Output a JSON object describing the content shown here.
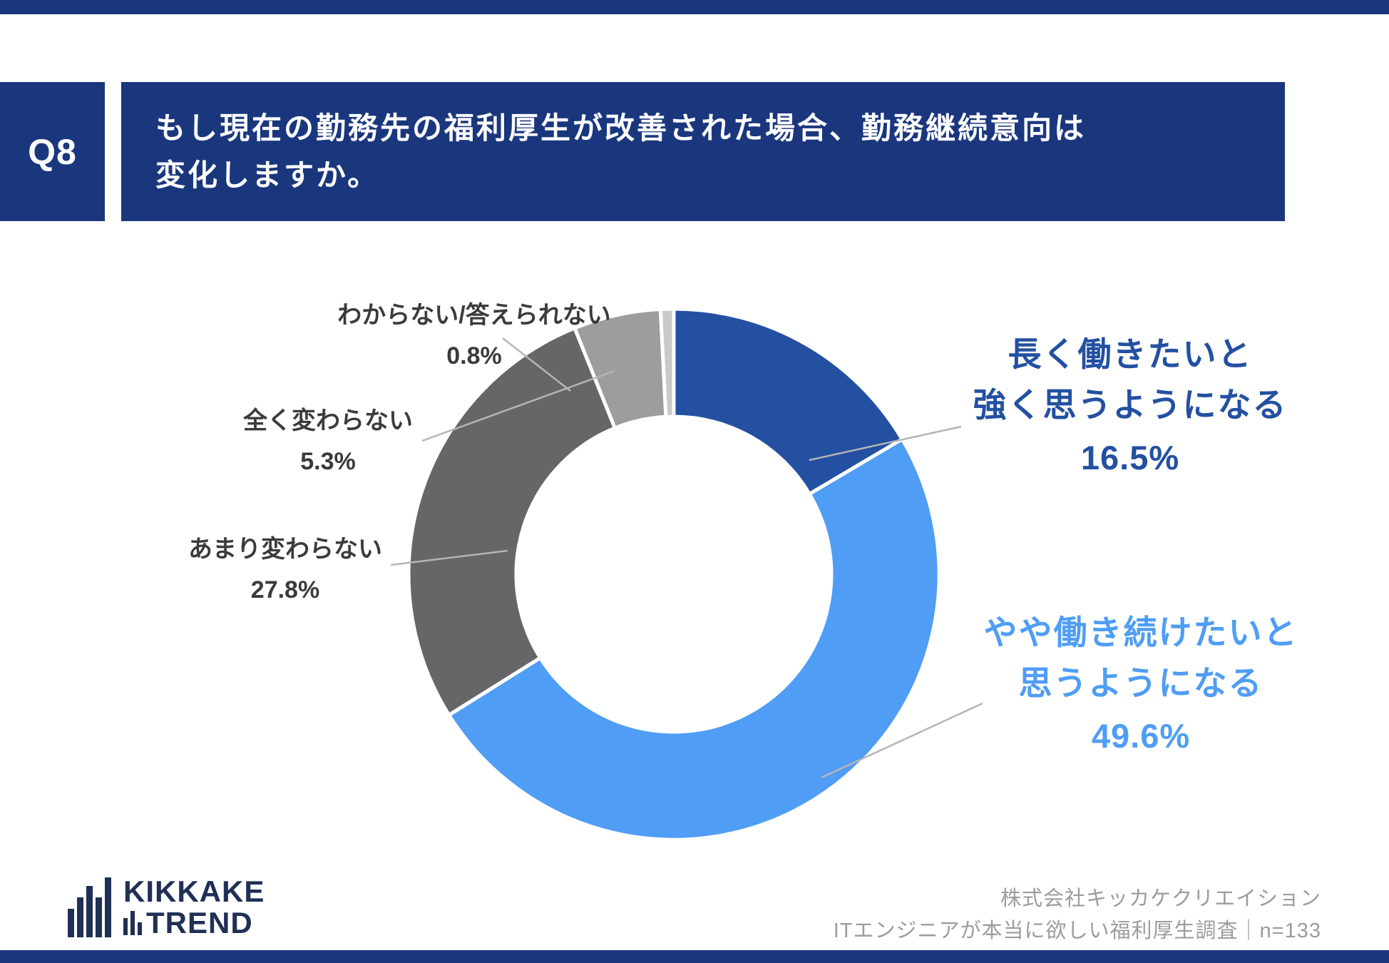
{
  "header": {
    "badge": "Q8",
    "question": "もし現在の勤務先の福利厚生が改善された場合、勤務継続意向は\n変化しますか。"
  },
  "chart_data": {
    "type": "pie",
    "subtype": "donut",
    "title": "もし現在の勤務先の福利厚生が改善された場合、勤務継続意向は変化しますか。",
    "unit": "%",
    "start_angle_deg": 0,
    "direction": "clockwise",
    "legend_position": "callout-labels",
    "segments": [
      {
        "label": "長く働きたいと強く思うようになる",
        "value": 16.5,
        "color": "#2350a1"
      },
      {
        "label": "やや働き続けたいと思うようになる",
        "value": 49.6,
        "color": "#4f9df5"
      },
      {
        "label": "あまり変わらない",
        "value": 27.8,
        "color": "#666666"
      },
      {
        "label": "全く変わらない",
        "value": 5.3,
        "color": "#9d9d9d"
      },
      {
        "label": "わからない/答えられない",
        "value": 0.8,
        "color": "#c9c9c9"
      }
    ]
  },
  "callouts": {
    "strong": {
      "line1": "長く働きたいと",
      "line2": "強く思うようになる",
      "pct": "16.5%",
      "color": "#2350a1"
    },
    "somewhat": {
      "line1": "やや働き続けたいと",
      "line2": "思うようになる",
      "pct": "49.6%",
      "color": "#4f9df5"
    },
    "not_much": {
      "label": "あまり変わらない",
      "pct": "27.8%"
    },
    "no_change": {
      "label": "全く変わらない",
      "pct": "5.3%"
    },
    "unknown": {
      "label": "わからない/答えられない",
      "pct": "0.8%"
    }
  },
  "logo": {
    "word1": "KIKKAKE",
    "word2": "TREND"
  },
  "footer": {
    "company": "株式会社キッカケクリエイション",
    "survey": "ITエンジニアが本当に欲しい福利厚生調査｜n=133"
  },
  "colors": {
    "navy": "#1a377e",
    "logo_navy": "#203055",
    "leader_gray": "#b5b5b5"
  }
}
